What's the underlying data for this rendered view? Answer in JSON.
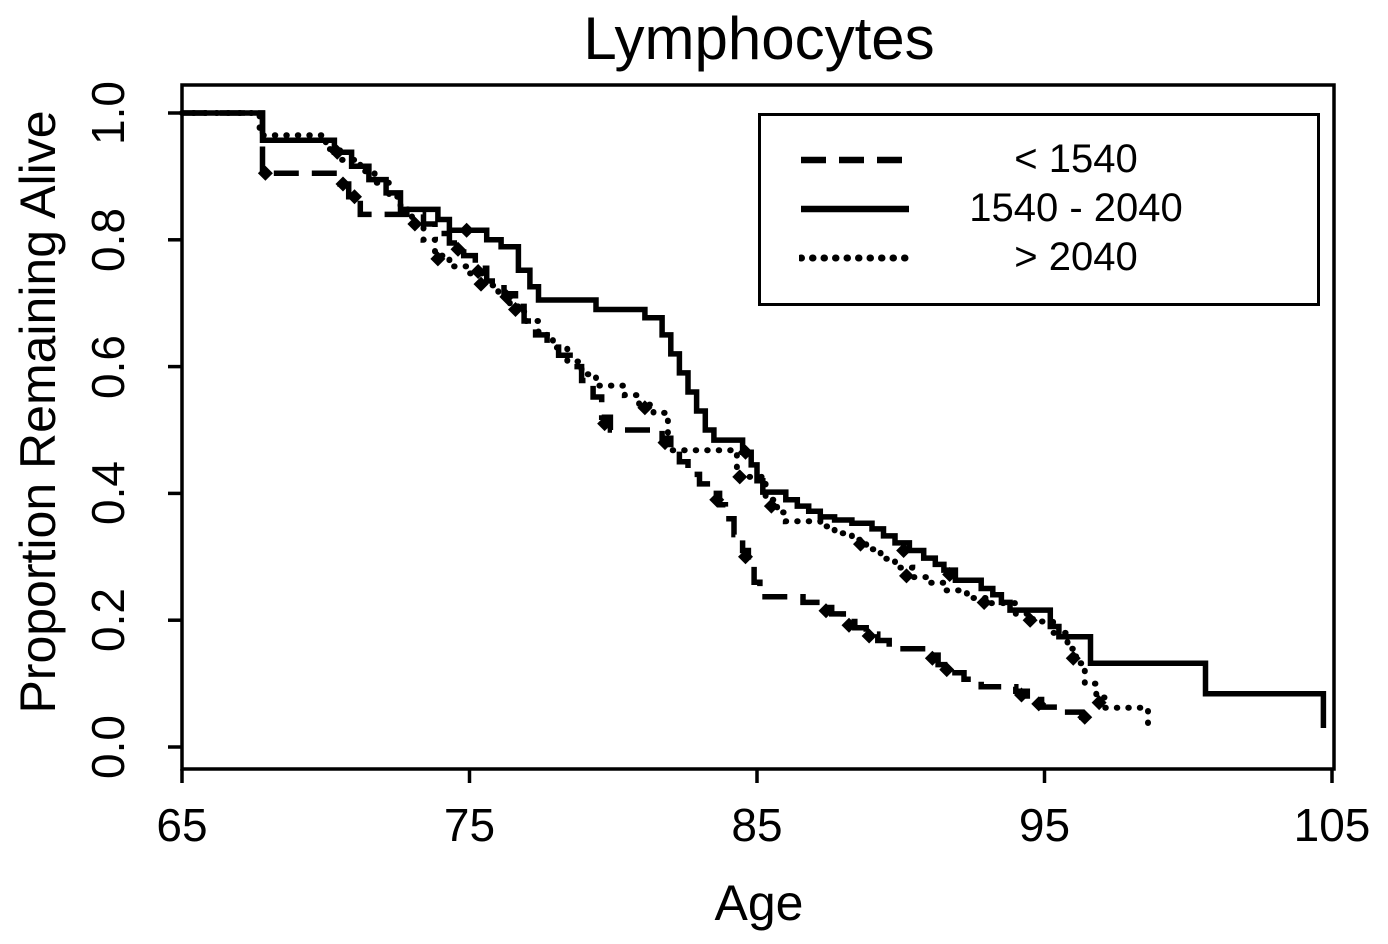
{
  "title": "Lymphocytes",
  "axes": {
    "xlabel": "Age",
    "ylabel": "Proportion Remaining Alive",
    "x_tick_labels": [
      "65",
      "75",
      "85",
      "95",
      "105"
    ],
    "y_tick_labels": [
      "0.0",
      "0.2",
      "0.4",
      "0.6",
      "0.8",
      "1.0"
    ]
  },
  "legend": {
    "position": "top-right",
    "items": [
      {
        "label": "< 1540",
        "style": "dashed"
      },
      {
        "label": "1540 - 2040",
        "style": "solid"
      },
      {
        "label": "> 2040",
        "style": "dotted"
      }
    ]
  },
  "colors": {
    "foreground": "#000000",
    "background": "#ffffff"
  },
  "chart_data": {
    "type": "line",
    "subtype": "kaplan-meier-step",
    "title": "Lymphocytes",
    "xlabel": "Age",
    "ylabel": "Proportion Remaining Alive",
    "xlim": [
      65,
      105
    ],
    "ylim": [
      0.0,
      1.0
    ],
    "x_ticks": [
      65,
      75,
      85,
      95,
      105
    ],
    "y_ticks": [
      0.0,
      0.2,
      0.4,
      0.6,
      0.8,
      1.0
    ],
    "grid": false,
    "legend_position": "top-right",
    "series": [
      {
        "name": "< 1540",
        "id": "lt-1540",
        "line_style": "dashed",
        "points": [
          [
            65,
            1.0
          ],
          [
            67.8,
            0.905
          ],
          [
            70.5,
            0.888
          ],
          [
            70.8,
            0.868
          ],
          [
            71.2,
            0.84
          ],
          [
            73.4,
            0.825
          ],
          [
            73.8,
            0.81
          ],
          [
            74.3,
            0.795
          ],
          [
            74.8,
            0.775
          ],
          [
            75.2,
            0.755
          ],
          [
            75.6,
            0.735
          ],
          [
            76.2,
            0.715
          ],
          [
            76.6,
            0.695
          ],
          [
            76.9,
            0.672
          ],
          [
            77.3,
            0.65
          ],
          [
            77.7,
            0.635
          ],
          [
            78.1,
            0.618
          ],
          [
            78.5,
            0.6
          ],
          [
            78.9,
            0.578
          ],
          [
            79.3,
            0.552
          ],
          [
            79.6,
            0.52
          ],
          [
            79.9,
            0.5
          ],
          [
            81.7,
            0.487
          ],
          [
            82.0,
            0.468
          ],
          [
            82.3,
            0.45
          ],
          [
            82.6,
            0.43
          ],
          [
            83.0,
            0.415
          ],
          [
            83.4,
            0.4
          ],
          [
            83.7,
            0.382
          ],
          [
            83.9,
            0.36
          ],
          [
            84.2,
            0.335
          ],
          [
            84.5,
            0.31
          ],
          [
            84.7,
            0.285
          ],
          [
            84.9,
            0.26
          ],
          [
            85.1,
            0.237
          ],
          [
            86.6,
            0.228
          ],
          [
            87.2,
            0.22
          ],
          [
            87.6,
            0.21
          ],
          [
            88.0,
            0.198
          ],
          [
            88.4,
            0.188
          ],
          [
            88.8,
            0.178
          ],
          [
            89.2,
            0.168
          ],
          [
            89.6,
            0.155
          ],
          [
            90.9,
            0.145
          ],
          [
            91.3,
            0.13
          ],
          [
            91.7,
            0.117
          ],
          [
            92.2,
            0.107
          ],
          [
            92.8,
            0.095
          ],
          [
            94.0,
            0.088
          ],
          [
            94.4,
            0.075
          ],
          [
            94.9,
            0.063
          ],
          [
            95.6,
            0.055
          ],
          [
            96.3,
            0.047
          ],
          [
            96.8,
            0.045
          ]
        ],
        "censor_marks": [
          [
            67.9,
            0.905
          ],
          [
            70.6,
            0.888
          ],
          [
            71.0,
            0.868
          ],
          [
            73.1,
            0.825
          ],
          [
            74.6,
            0.785
          ],
          [
            75.3,
            0.75
          ],
          [
            76.3,
            0.71
          ],
          [
            79.7,
            0.51
          ],
          [
            81.8,
            0.48
          ],
          [
            83.6,
            0.39
          ],
          [
            84.6,
            0.3
          ],
          [
            87.4,
            0.215
          ],
          [
            88.2,
            0.192
          ],
          [
            88.9,
            0.175
          ],
          [
            91.1,
            0.14
          ],
          [
            91.6,
            0.122
          ],
          [
            94.2,
            0.082
          ],
          [
            94.8,
            0.068
          ],
          [
            96.4,
            0.047
          ]
        ]
      },
      {
        "name": "1540 - 2040",
        "id": "1540-2040",
        "line_style": "solid",
        "points": [
          [
            65,
            1.0
          ],
          [
            67.8,
            0.957
          ],
          [
            70.3,
            0.938
          ],
          [
            70.9,
            0.916
          ],
          [
            71.5,
            0.895
          ],
          [
            72.1,
            0.874
          ],
          [
            72.6,
            0.848
          ],
          [
            73.9,
            0.832
          ],
          [
            74.3,
            0.815
          ],
          [
            75.6,
            0.8
          ],
          [
            76.1,
            0.789
          ],
          [
            76.7,
            0.752
          ],
          [
            77.1,
            0.726
          ],
          [
            77.4,
            0.705
          ],
          [
            79.4,
            0.69
          ],
          [
            81.1,
            0.677
          ],
          [
            81.7,
            0.65
          ],
          [
            82.0,
            0.62
          ],
          [
            82.3,
            0.59
          ],
          [
            82.6,
            0.56
          ],
          [
            82.9,
            0.53
          ],
          [
            83.2,
            0.5
          ],
          [
            83.5,
            0.484
          ],
          [
            84.5,
            0.465
          ],
          [
            84.8,
            0.445
          ],
          [
            85.0,
            0.42
          ],
          [
            85.2,
            0.402
          ],
          [
            86.0,
            0.39
          ],
          [
            86.4,
            0.38
          ],
          [
            86.8,
            0.372
          ],
          [
            87.2,
            0.363
          ],
          [
            87.7,
            0.358
          ],
          [
            88.3,
            0.353
          ],
          [
            89.0,
            0.344
          ],
          [
            89.4,
            0.333
          ],
          [
            89.8,
            0.322
          ],
          [
            90.3,
            0.31
          ],
          [
            90.8,
            0.298
          ],
          [
            91.2,
            0.288
          ],
          [
            91.5,
            0.279
          ],
          [
            91.9,
            0.263
          ],
          [
            92.8,
            0.25
          ],
          [
            93.2,
            0.24
          ],
          [
            93.5,
            0.228
          ],
          [
            93.8,
            0.216
          ],
          [
            95.2,
            0.19
          ],
          [
            95.5,
            0.174
          ],
          [
            96.6,
            0.132
          ],
          [
            100.6,
            0.084
          ],
          [
            104.7,
            0.03
          ]
        ],
        "censor_marks": [
          [
            70.4,
            0.938
          ],
          [
            74.9,
            0.815
          ],
          [
            84.6,
            0.465
          ],
          [
            90.1,
            0.31
          ],
          [
            91.7,
            0.272
          ]
        ]
      },
      {
        "name": "> 2040",
        "id": "gt-2040",
        "line_style": "dotted",
        "points": [
          [
            65,
            1.0
          ],
          [
            67.7,
            0.965
          ],
          [
            70.0,
            0.943
          ],
          [
            70.5,
            0.926
          ],
          [
            71.2,
            0.908
          ],
          [
            71.7,
            0.89
          ],
          [
            72.2,
            0.868
          ],
          [
            72.6,
            0.848
          ],
          [
            73.0,
            0.825
          ],
          [
            73.4,
            0.8
          ],
          [
            73.8,
            0.775
          ],
          [
            74.3,
            0.758
          ],
          [
            74.9,
            0.747
          ],
          [
            75.5,
            0.728
          ],
          [
            76.0,
            0.71
          ],
          [
            76.4,
            0.695
          ],
          [
            76.9,
            0.672
          ],
          [
            77.4,
            0.65
          ],
          [
            77.9,
            0.63
          ],
          [
            78.4,
            0.608
          ],
          [
            78.9,
            0.588
          ],
          [
            79.4,
            0.57
          ],
          [
            80.4,
            0.555
          ],
          [
            80.9,
            0.54
          ],
          [
            81.4,
            0.527
          ],
          [
            81.9,
            0.468
          ],
          [
            84.3,
            0.426
          ],
          [
            85.3,
            0.39
          ],
          [
            85.7,
            0.37
          ],
          [
            86.0,
            0.356
          ],
          [
            87.2,
            0.348
          ],
          [
            87.7,
            0.337
          ],
          [
            88.3,
            0.327
          ],
          [
            88.8,
            0.312
          ],
          [
            89.3,
            0.297
          ],
          [
            89.8,
            0.283
          ],
          [
            90.4,
            0.268
          ],
          [
            90.9,
            0.259
          ],
          [
            91.5,
            0.247
          ],
          [
            92.3,
            0.235
          ],
          [
            93.0,
            0.227
          ],
          [
            94.0,
            0.21
          ],
          [
            94.6,
            0.198
          ],
          [
            95.3,
            0.18
          ],
          [
            95.8,
            0.155
          ],
          [
            96.1,
            0.132
          ],
          [
            96.4,
            0.1
          ],
          [
            96.8,
            0.078
          ],
          [
            97.1,
            0.062
          ],
          [
            98.6,
            0.022
          ]
        ],
        "censor_marks": [
          [
            73.9,
            0.77
          ],
          [
            75.4,
            0.73
          ],
          [
            76.6,
            0.69
          ],
          [
            81.1,
            0.535
          ],
          [
            84.4,
            0.426
          ],
          [
            85.5,
            0.38
          ],
          [
            88.6,
            0.32
          ],
          [
            90.2,
            0.27
          ],
          [
            92.9,
            0.228
          ],
          [
            94.5,
            0.2
          ],
          [
            96.0,
            0.14
          ],
          [
            96.9,
            0.07
          ]
        ]
      }
    ]
  }
}
